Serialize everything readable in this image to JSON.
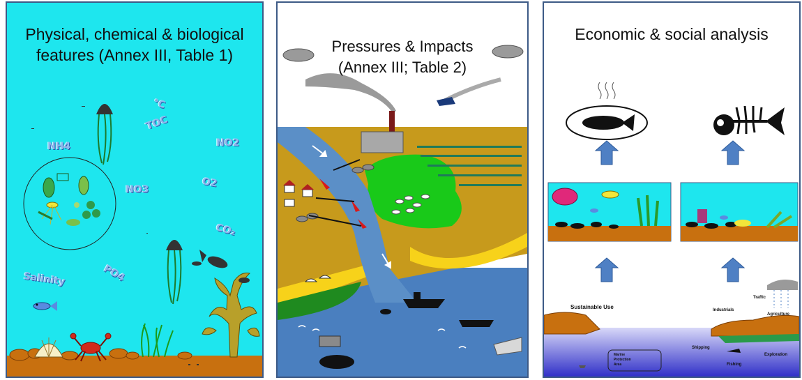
{
  "panels": [
    {
      "title_lines": [
        "Physical, chemical & biological",
        "features (Annex III, Table 1)"
      ],
      "labels": {
        "temp": "°C",
        "toc": "TOC",
        "nh4": "NH4",
        "no2": "NO2",
        "no3": "NO3",
        "o2": "O2",
        "co2": "CO₂",
        "po4": "PO4",
        "salinity": "Salinity"
      }
    },
    {
      "title_lines": [
        "Pressures & Impacts",
        "(Annex III; Table 2)"
      ]
    },
    {
      "title_lines": [
        "Economic & social analysis"
      ],
      "labels": {
        "sustainable_use": "Sustainable Use",
        "industrials": "Industrials",
        "traffic": "Traffic",
        "agriculture": "Agriculture",
        "shipping": "Shipping",
        "exploration": "Exploration",
        "fishing": "Fishing",
        "mpa_line1": "Marine",
        "mpa_line2": "Protection",
        "mpa_line3": "Area"
      }
    }
  ],
  "colors": {
    "water": "#1ee6ee",
    "seabed": "#c8700f",
    "land": "#c79a1c",
    "grass": "#19c919",
    "dark_grass": "#1f8a1f",
    "sand": "#f7d21a",
    "river": "#5b8fc7",
    "sea": "#4a7fbf",
    "arrow": "#4f80c4",
    "border": "#3d5a86"
  }
}
